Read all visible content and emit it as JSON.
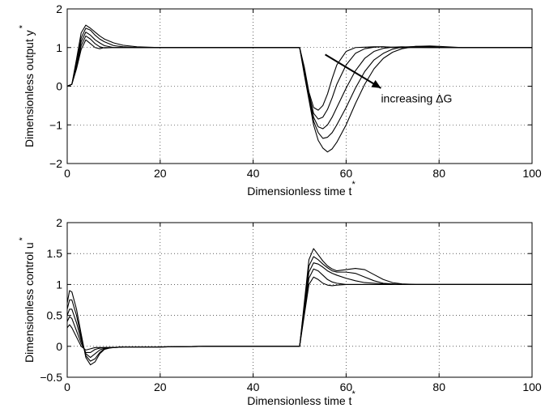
{
  "chart_data": [
    {
      "type": "line",
      "xlabel": "Dimensionless time t",
      "xlabel_sup": "*",
      "ylabel": "Dimensionless output y",
      "ylabel_sup": "*",
      "xlim": [
        0,
        100
      ],
      "ylim": [
        -2,
        2
      ],
      "xticks": [
        0,
        20,
        40,
        60,
        80,
        100
      ],
      "yticks": [
        -2,
        -1,
        0,
        1,
        2
      ],
      "grid": true,
      "annotation": "increasing ΔG",
      "series": [
        {
          "x": [
            0,
            1,
            2,
            3,
            4,
            5,
            6,
            7,
            8,
            10,
            12,
            15,
            20,
            25,
            30,
            35,
            40,
            45,
            49.5,
            50,
            51,
            52,
            53,
            54,
            55,
            56,
            57,
            58,
            60,
            62,
            64,
            66,
            68,
            70,
            72,
            75,
            78,
            80,
            85,
            90,
            100
          ],
          "values": [
            0,
            0.05,
            0.45,
            0.95,
            1.2,
            1.1,
            1.0,
            0.97,
            1.0,
            1.0,
            1.0,
            1.0,
            1.0,
            1.0,
            1.0,
            1.0,
            1.0,
            1.0,
            1.0,
            1.0,
            0.5,
            -0.15,
            -0.55,
            -0.62,
            -0.5,
            -0.2,
            0.2,
            0.55,
            0.9,
            1.0,
            1.01,
            1.02,
            1.02,
            1.0,
            1.0,
            1.0,
            1.0,
            1.0,
            1.0,
            1.0,
            1.0
          ]
        },
        {
          "x": [
            0,
            1,
            2,
            3,
            4,
            5,
            6,
            7,
            8,
            10,
            12,
            15,
            20,
            25,
            30,
            35,
            40,
            45,
            49.5,
            50,
            51,
            52,
            53,
            54,
            55,
            56,
            57,
            58,
            60,
            62,
            64,
            66,
            68,
            70,
            72,
            75,
            78,
            80,
            85,
            90,
            100
          ],
          "values": [
            0,
            0.05,
            0.5,
            1.05,
            1.3,
            1.22,
            1.1,
            1.02,
            0.99,
            1.0,
            1.0,
            1.0,
            1.0,
            1.0,
            1.0,
            1.0,
            1.0,
            1.0,
            1.0,
            1.0,
            0.45,
            -0.2,
            -0.7,
            -0.85,
            -0.8,
            -0.6,
            -0.3,
            0.05,
            0.55,
            0.85,
            0.97,
            1.01,
            1.02,
            1.01,
            1.0,
            1.0,
            1.0,
            1.0,
            1.0,
            1.0,
            1.0
          ]
        },
        {
          "x": [
            0,
            1,
            2,
            3,
            4,
            5,
            6,
            7,
            8,
            10,
            12,
            15,
            20,
            25,
            30,
            35,
            40,
            45,
            49.5,
            50,
            51,
            52,
            53,
            54,
            55,
            56,
            57,
            58,
            60,
            62,
            64,
            66,
            68,
            70,
            72,
            75,
            78,
            80,
            85,
            90,
            100
          ],
          "values": [
            0,
            0.05,
            0.55,
            1.15,
            1.4,
            1.32,
            1.2,
            1.12,
            1.05,
            1.0,
            1.0,
            1.0,
            1.0,
            1.0,
            1.0,
            1.0,
            1.0,
            1.0,
            1.0,
            1.0,
            0.4,
            -0.25,
            -0.8,
            -1.05,
            -1.1,
            -1.0,
            -0.8,
            -0.55,
            -0.05,
            0.4,
            0.72,
            0.9,
            0.98,
            1.01,
            1.02,
            1.01,
            1.0,
            1.0,
            1.0,
            1.0,
            1.0
          ]
        },
        {
          "x": [
            0,
            1,
            2,
            3,
            4,
            5,
            6,
            7,
            8,
            10,
            12,
            15,
            20,
            25,
            30,
            35,
            40,
            45,
            49.5,
            50,
            51,
            52,
            53,
            54,
            55,
            56,
            57,
            58,
            60,
            62,
            64,
            66,
            68,
            70,
            72,
            75,
            78,
            80,
            85,
            90,
            100
          ],
          "values": [
            0,
            0.05,
            0.6,
            1.25,
            1.5,
            1.45,
            1.32,
            1.22,
            1.15,
            1.05,
            1.02,
            1.0,
            1.0,
            1.0,
            1.0,
            1.0,
            1.0,
            1.0,
            1.0,
            1.0,
            0.35,
            -0.3,
            -0.9,
            -1.2,
            -1.35,
            -1.32,
            -1.2,
            -1.0,
            -0.55,
            -0.05,
            0.38,
            0.68,
            0.85,
            0.96,
            1.01,
            1.03,
            1.02,
            1.01,
            1.0,
            1.0,
            1.0
          ]
        },
        {
          "x": [
            0,
            1,
            2,
            3,
            4,
            5,
            6,
            7,
            8,
            10,
            12,
            15,
            20,
            25,
            30,
            35,
            40,
            45,
            49.5,
            50,
            51,
            52,
            53,
            54,
            55,
            56,
            57,
            58,
            60,
            62,
            64,
            66,
            68,
            70,
            72,
            75,
            78,
            80,
            85,
            90,
            100
          ],
          "values": [
            0,
            0.05,
            0.7,
            1.38,
            1.58,
            1.5,
            1.4,
            1.3,
            1.22,
            1.12,
            1.06,
            1.02,
            1.0,
            1.0,
            1.0,
            1.0,
            1.0,
            1.0,
            1.0,
            1.0,
            0.3,
            -0.35,
            -1.0,
            -1.4,
            -1.6,
            -1.7,
            -1.62,
            -1.45,
            -1.0,
            -0.45,
            0.05,
            0.45,
            0.72,
            0.88,
            0.97,
            1.03,
            1.04,
            1.03,
            1.0,
            1.0,
            1.0
          ]
        }
      ]
    },
    {
      "type": "line",
      "xlabel": "Dimensionless time t",
      "xlabel_sup": "*",
      "ylabel": "Dimensionless control u",
      "ylabel_sup": "*",
      "xlim": [
        0,
        100
      ],
      "ylim": [
        -0.5,
        2
      ],
      "xticks": [
        0,
        20,
        40,
        60,
        80,
        100
      ],
      "yticks": [
        -0.5,
        0,
        0.5,
        1,
        1.5,
        2
      ],
      "ytick_labels": [
        "-0.5",
        "0",
        "0.5",
        "1",
        "1.5",
        "2"
      ],
      "grid": true,
      "series": [
        {
          "x": [
            0,
            0.5,
            1,
            2,
            3,
            4,
            5,
            6,
            7,
            8,
            9,
            10,
            12,
            15,
            20,
            30,
            40,
            49.5,
            50,
            51,
            52,
            53,
            54,
            55,
            56,
            57,
            58,
            60,
            62,
            64,
            66,
            68,
            70,
            72,
            75,
            80,
            90,
            100
          ],
          "values": [
            0.3,
            0.35,
            0.3,
            0.15,
            0.0,
            -0.06,
            -0.04,
            -0.02,
            -0.02,
            -0.02,
            -0.02,
            -0.02,
            -0.01,
            -0.01,
            -0.01,
            0,
            0,
            0,
            0,
            0.5,
            1.0,
            1.12,
            1.08,
            1.02,
            0.99,
            0.98,
            0.99,
            1.0,
            1.0,
            1.0,
            1.0,
            1.0,
            1.0,
            1.0,
            1.0,
            1.0,
            1.0,
            1.0
          ]
        },
        {
          "x": [
            0,
            0.5,
            1,
            2,
            3,
            4,
            5,
            6,
            7,
            8,
            9,
            10,
            12,
            15,
            20,
            30,
            40,
            49.5,
            50,
            51,
            52,
            53,
            54,
            55,
            56,
            57,
            58,
            60,
            62,
            64,
            66,
            68,
            70,
            72,
            75,
            80,
            90,
            100
          ],
          "values": [
            0.4,
            0.48,
            0.45,
            0.25,
            0.05,
            -0.1,
            -0.1,
            -0.05,
            -0.03,
            -0.02,
            -0.02,
            -0.02,
            -0.01,
            -0.01,
            -0.01,
            0,
            0,
            0,
            0,
            0.55,
            1.1,
            1.25,
            1.22,
            1.15,
            1.08,
            1.04,
            1.02,
            1.0,
            1.0,
            1.0,
            1.0,
            1.0,
            1.0,
            1.0,
            1.0,
            1.0,
            1.0,
            1.0
          ]
        },
        {
          "x": [
            0,
            0.5,
            1,
            2,
            3,
            4,
            5,
            6,
            7,
            8,
            9,
            10,
            12,
            15,
            20,
            30,
            40,
            49.5,
            50,
            51,
            52,
            53,
            54,
            55,
            56,
            57,
            58,
            60,
            62,
            64,
            66,
            68,
            70,
            72,
            75,
            80,
            90,
            100
          ],
          "values": [
            0.5,
            0.6,
            0.6,
            0.38,
            0.1,
            -0.12,
            -0.18,
            -0.12,
            -0.06,
            -0.03,
            -0.02,
            -0.02,
            -0.01,
            -0.01,
            -0.01,
            0,
            0,
            0,
            0,
            0.6,
            1.2,
            1.35,
            1.33,
            1.28,
            1.22,
            1.18,
            1.15,
            1.1,
            1.06,
            1.03,
            1.02,
            1.01,
            1.0,
            1.0,
            1.0,
            1.0,
            1.0,
            1.0
          ]
        },
        {
          "x": [
            0,
            0.5,
            1,
            2,
            3,
            4,
            5,
            6,
            7,
            8,
            9,
            10,
            12,
            15,
            20,
            30,
            40,
            49.5,
            50,
            51,
            52,
            53,
            54,
            55,
            56,
            57,
            58,
            60,
            62,
            64,
            66,
            68,
            70,
            72,
            75,
            80,
            90,
            100
          ],
          "values": [
            0.6,
            0.75,
            0.75,
            0.5,
            0.15,
            -0.15,
            -0.24,
            -0.2,
            -0.1,
            -0.04,
            -0.02,
            -0.02,
            -0.01,
            -0.01,
            -0.01,
            0,
            0,
            0,
            0,
            0.65,
            1.3,
            1.45,
            1.4,
            1.33,
            1.27,
            1.22,
            1.2,
            1.2,
            1.18,
            1.12,
            1.06,
            1.02,
            1.01,
            1.0,
            1.0,
            1.0,
            1.0,
            1.0
          ]
        },
        {
          "x": [
            0,
            0.5,
            1,
            2,
            3,
            4,
            5,
            6,
            7,
            8,
            9,
            10,
            12,
            15,
            20,
            30,
            40,
            49.5,
            50,
            51,
            52,
            53,
            54,
            55,
            56,
            57,
            58,
            60,
            62,
            64,
            66,
            68,
            70,
            72,
            75,
            80,
            90,
            100
          ],
          "values": [
            0.7,
            0.9,
            0.88,
            0.6,
            0.2,
            -0.18,
            -0.3,
            -0.25,
            -0.12,
            -0.05,
            -0.03,
            -0.02,
            -0.01,
            -0.01,
            -0.01,
            0,
            0,
            0,
            0,
            0.7,
            1.4,
            1.58,
            1.48,
            1.38,
            1.3,
            1.25,
            1.22,
            1.24,
            1.26,
            1.24,
            1.16,
            1.08,
            1.03,
            1.01,
            1.0,
            1.0,
            1.0,
            1.0
          ]
        }
      ]
    }
  ]
}
